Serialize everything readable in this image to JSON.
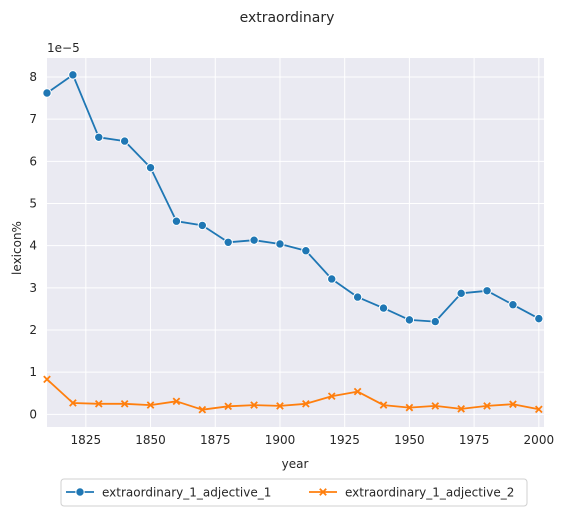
{
  "chart_data": {
    "type": "line",
    "title": "extraordinary",
    "xlabel": "year",
    "ylabel": "lexicon%",
    "y_scale_label": "1e−5",
    "xlim": [
      1810,
      2002
    ],
    "ylim": [
      -0.3,
      8.45
    ],
    "x_ticks": [
      1825,
      1850,
      1875,
      1900,
      1925,
      1950,
      1975,
      2000
    ],
    "y_ticks": [
      0,
      1,
      2,
      3,
      4,
      5,
      6,
      7,
      8
    ],
    "grid": true,
    "legend_position": "bottom-center",
    "x": [
      1810,
      1820,
      1830,
      1840,
      1850,
      1860,
      1870,
      1880,
      1890,
      1900,
      1910,
      1920,
      1930,
      1940,
      1950,
      1960,
      1970,
      1980,
      1990,
      2000
    ],
    "series": [
      {
        "name": "extraordinary_1_adjective_1",
        "color": "#1f77b4",
        "marker": "circle",
        "values": [
          7.62,
          8.05,
          6.57,
          6.48,
          5.85,
          4.58,
          4.48,
          4.08,
          4.13,
          4.04,
          3.88,
          3.21,
          2.78,
          2.52,
          2.24,
          2.2,
          2.87,
          2.93,
          2.6,
          2.27
        ]
      },
      {
        "name": "extraordinary_1_adjective_2",
        "color": "#ff7f0e",
        "marker": "x",
        "values": [
          0.83,
          0.27,
          0.25,
          0.25,
          0.22,
          0.31,
          0.11,
          0.19,
          0.22,
          0.2,
          0.25,
          0.43,
          0.54,
          0.22,
          0.16,
          0.2,
          0.13,
          0.2,
          0.24,
          0.12
        ]
      }
    ]
  }
}
